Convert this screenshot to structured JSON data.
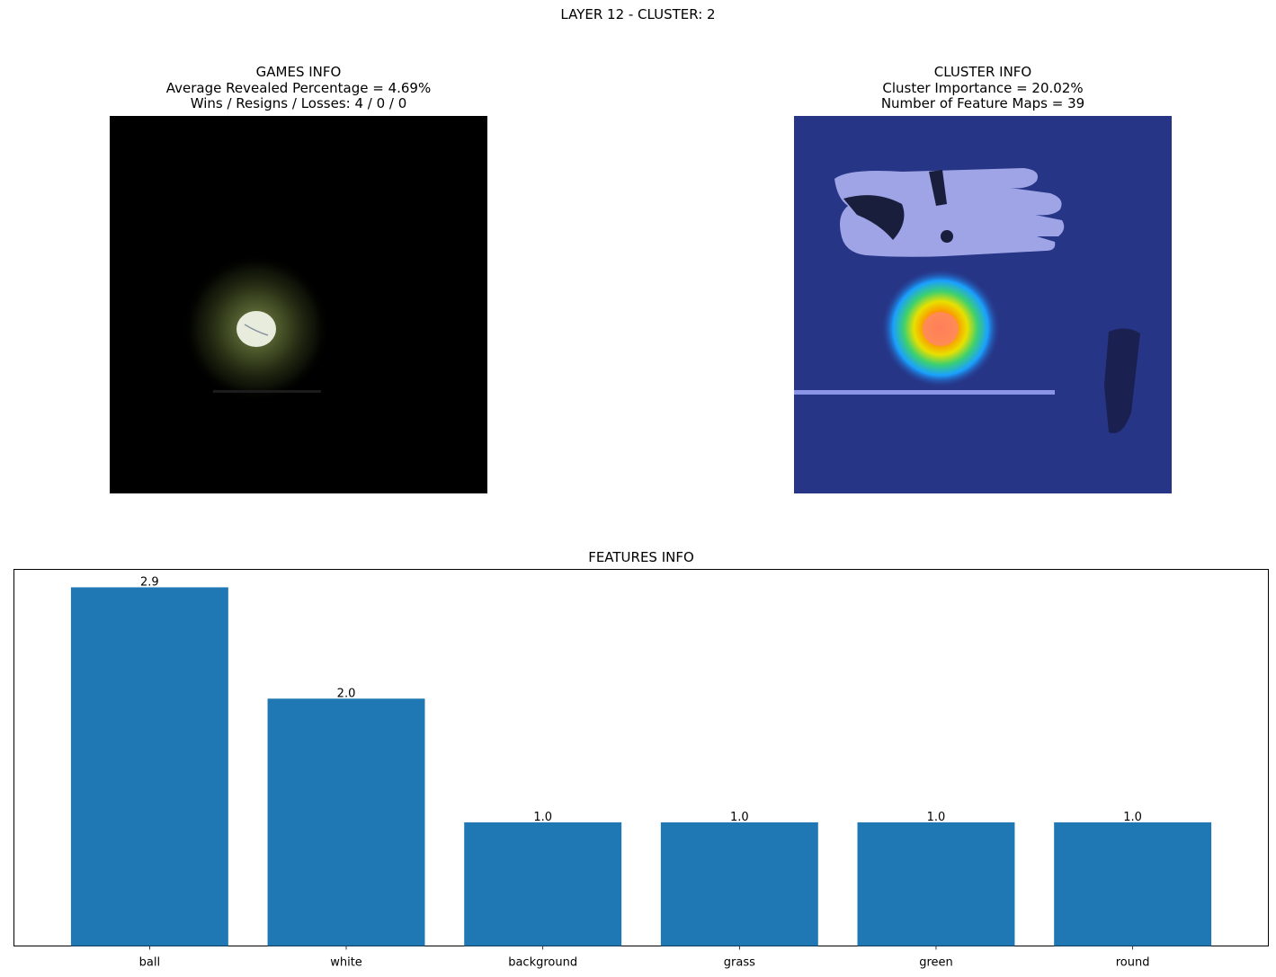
{
  "suptitle": "LAYER 12 - CLUSTER: 2",
  "games_info": {
    "title": "GAMES INFO",
    "line1": "Average Revealed Percentage = 4.69%",
    "line2": "Wins / Resigns / Losses: 4 / 0 / 0"
  },
  "cluster_info": {
    "title": "CLUSTER INFO",
    "line1": "Cluster Importance = 20.02%",
    "line2": "Number of Feature Maps = 39"
  },
  "features_title": "FEATURES INFO",
  "colors": {
    "bar": "#1f77b4",
    "overlay_background": "#1f2a6e"
  },
  "chart_data": {
    "type": "bar",
    "title": "FEATURES INFO",
    "categories": [
      "ball",
      "white",
      "background",
      "grass",
      "green",
      "round"
    ],
    "values": [
      2.9,
      2.0,
      1.0,
      1.0,
      1.0,
      1.0
    ],
    "value_labels": [
      "2.9",
      "2.0",
      "1.0",
      "1.0",
      "1.0",
      "1.0"
    ],
    "xlabel": "",
    "ylabel": "",
    "ylim": [
      0,
      3.045
    ],
    "y_ticks_visible": false,
    "grid": false
  }
}
